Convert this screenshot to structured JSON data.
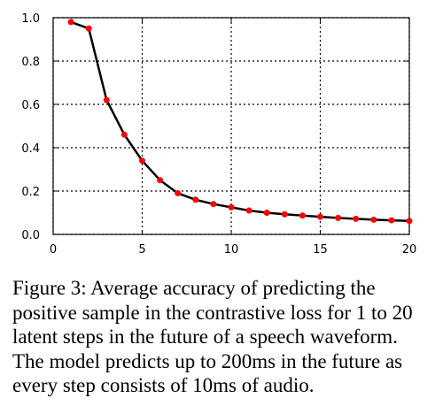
{
  "chart_data": {
    "type": "line",
    "x": [
      1,
      2,
      3,
      4,
      5,
      6,
      7,
      8,
      9,
      10,
      11,
      12,
      13,
      14,
      15,
      16,
      17,
      18,
      19,
      20
    ],
    "series": [
      {
        "values": [
          0.98,
          0.95,
          0.62,
          0.46,
          0.34,
          0.25,
          0.19,
          0.16,
          0.14,
          0.125,
          0.11,
          0.1,
          0.093,
          0.087,
          0.081,
          0.076,
          0.072,
          0.068,
          0.065,
          0.062
        ]
      }
    ],
    "xlim": [
      0,
      20
    ],
    "ylim": [
      0,
      1.0
    ],
    "xticks": [
      "0",
      "5",
      "10",
      "15",
      "20"
    ],
    "yticks": [
      "0.0",
      "0.2",
      "0.4",
      "0.6",
      "0.8",
      "1.0"
    ],
    "grid": true,
    "line_color": "#000000",
    "marker_color": "#ff0000"
  },
  "caption": {
    "lines": [
      "Figure 3:  Average accuracy of predicting the",
      "positive sample in the contrastive loss for 1 to 20",
      "latent steps in the future of a speech waveform.",
      "The model predicts up to 200ms in the future as",
      "every step consists of 10ms of audio."
    ]
  }
}
